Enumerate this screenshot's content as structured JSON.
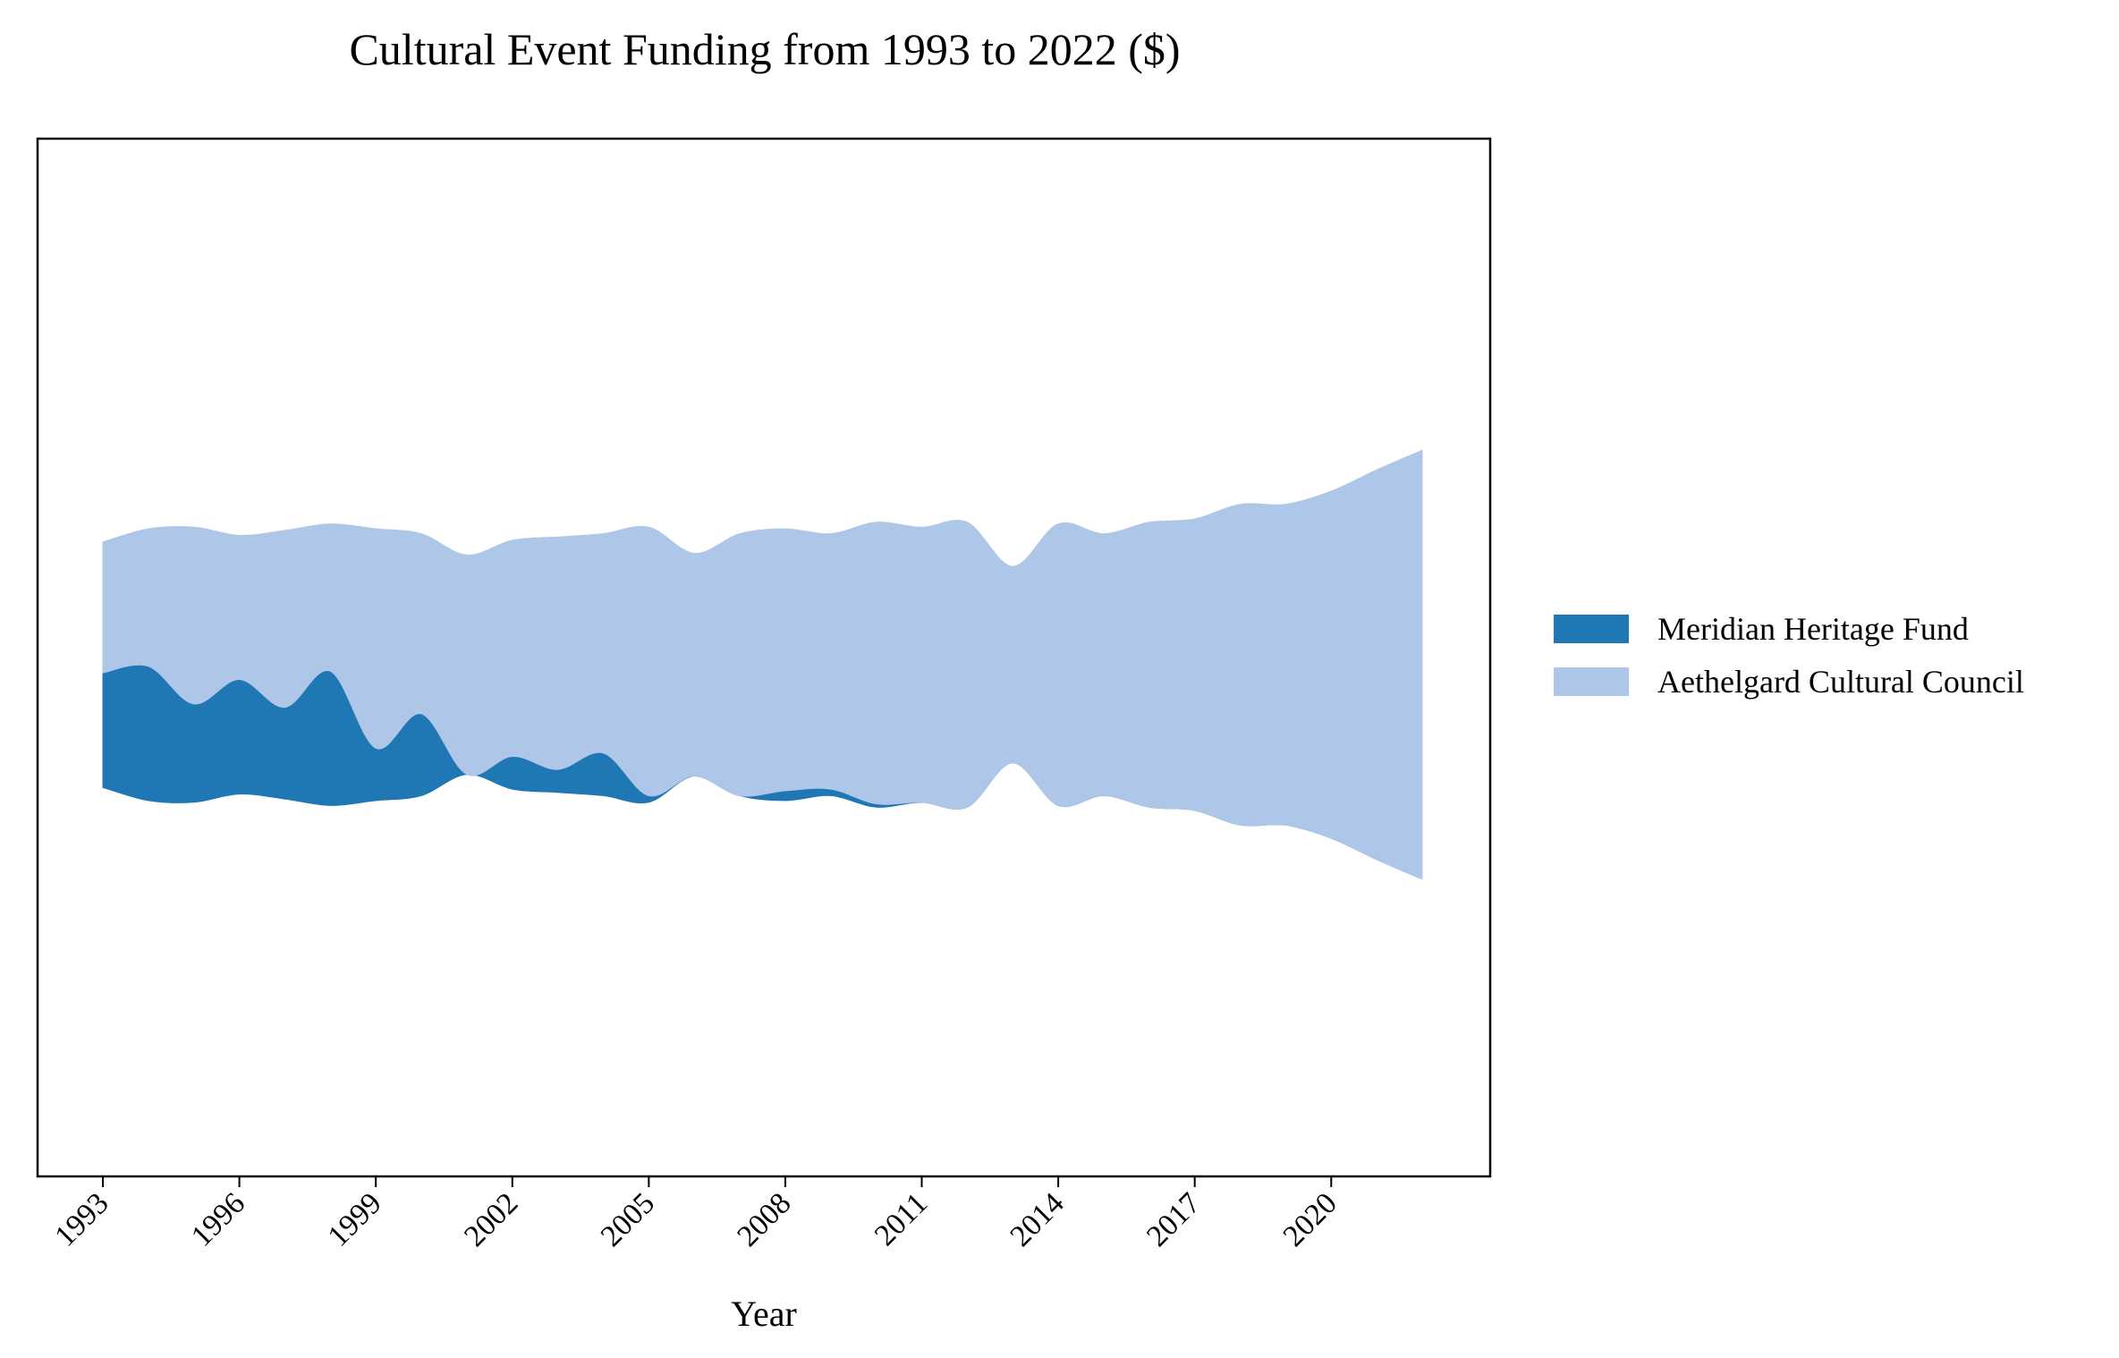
{
  "chart_data": {
    "type": "area",
    "subtype": "streamgraph",
    "title": "Cultural Event Funding from 1993 to 2022 ($)",
    "xlabel": "Year",
    "ylabel": "",
    "y_ticks_shown": false,
    "grid": false,
    "legend_position": "right",
    "x": [
      1993,
      1994,
      1995,
      1996,
      1997,
      1998,
      1999,
      2000,
      2001,
      2002,
      2003,
      2004,
      2005,
      2006,
      2007,
      2008,
      2009,
      2010,
      2011,
      2012,
      2013,
      2014,
      2015,
      2016,
      2017,
      2018,
      2019,
      2020,
      2021,
      2022
    ],
    "xtick_labels": [
      "1993",
      "1996",
      "1999",
      "2002",
      "2005",
      "2008",
      "2011",
      "2014",
      "2017",
      "2020"
    ],
    "xtick_values": [
      1993,
      1996,
      1999,
      2002,
      2005,
      2008,
      2011,
      2014,
      2017,
      2020
    ],
    "series": [
      {
        "name": "Meridian Heritage Fund",
        "color": "#1f77b4",
        "values": [
          35,
          41,
          30,
          35,
          28,
          41,
          16,
          25,
          0,
          10,
          7,
          13,
          2,
          0,
          0,
          3,
          2,
          1,
          0,
          0,
          0,
          0,
          0,
          0,
          0,
          0,
          0,
          0,
          0,
          0
        ]
      },
      {
        "name": "Aethelgard Cultural Council",
        "color": "#aec7e8",
        "values": [
          40,
          42,
          54,
          44,
          54,
          45,
          67,
          55,
          67,
          66,
          71,
          67,
          82,
          68,
          80,
          80,
          78,
          86,
          84,
          87,
          60,
          86,
          80,
          87,
          89,
          98,
          98,
          106,
          119,
          131
        ]
      }
    ]
  }
}
